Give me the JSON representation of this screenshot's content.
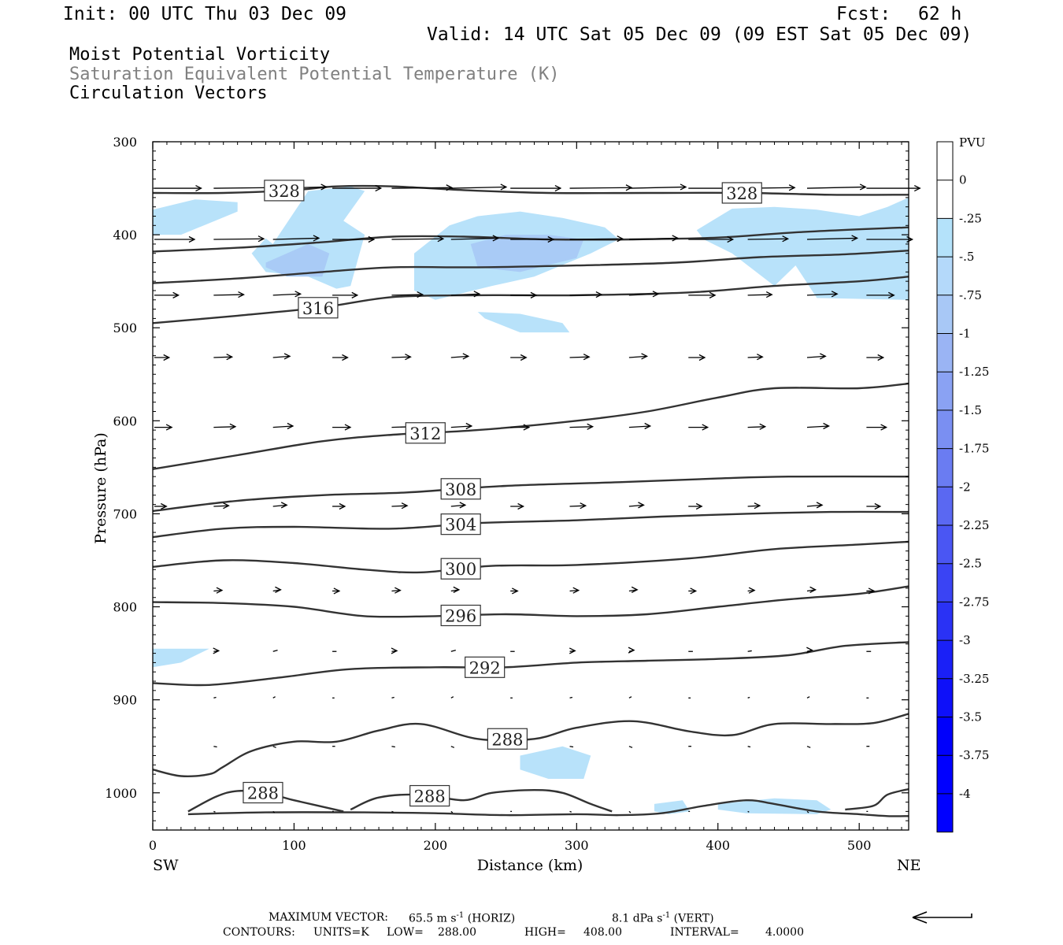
{
  "header": {
    "init": "Init: 00 UTC Thu 03 Dec 09",
    "fcst_label": "Fcst:",
    "fcst_value": "62 h",
    "valid": "Valid: 14 UTC Sat 05 Dec 09 (09 EST Sat 05 Dec 09)"
  },
  "fields": {
    "line1": "Moist Potential Vorticity",
    "line2": "Saturation Equivalent Potential Temperature (K)",
    "line3": "Circulation Vectors"
  },
  "colors": {
    "pv_fill": [
      "#ffffff",
      "#ffffff",
      "#b4e2fa",
      "#b4d9fa",
      "#a8c8f6",
      "#9ab4f4",
      "#8aa2f3",
      "#7a8ff2",
      "#6a7cf2",
      "#5a68f2",
      "#4a56f3",
      "#3a44f4",
      "#2a32f5",
      "#1a20f7",
      "#0e10f9",
      "#0000fb",
      "#0000ff"
    ],
    "contour": "#333333",
    "vector": "#000000",
    "shade": "#b8e2fa",
    "shade_dark": "#a9cbf6"
  },
  "chart_data": {
    "type": "cross-section",
    "xlabel": "Distance (km)",
    "ylabel": "Pressure (hPa)",
    "xlim": [
      0,
      535
    ],
    "ylim": [
      1040,
      300
    ],
    "x_ticks": [
      0,
      100,
      200,
      300,
      400,
      500
    ],
    "y_ticks": [
      300,
      400,
      500,
      600,
      700,
      800,
      900,
      1000
    ],
    "x_end_labels": {
      "left": "SW",
      "right": "NE"
    },
    "colorbar": {
      "title": "PVU",
      "labels": [
        "0",
        "-.25",
        "-.5",
        "-.75",
        "-1",
        "-1.25",
        "-1.5",
        "-1.75",
        "-2",
        "-2.25",
        "-2.5",
        "-2.75",
        "-3",
        "-3.25",
        "-3.5",
        "-3.75",
        "-4"
      ]
    },
    "contours": [
      {
        "label": "328",
        "x": [
          0,
          50,
          100,
          130,
          170,
          220,
          280,
          350,
          420,
          480,
          535
        ],
        "y": [
          355,
          355,
          352,
          348,
          348,
          352,
          355,
          355,
          355,
          357,
          357
        ]
      },
      {
        "x": [
          0,
          60,
          120,
          170,
          220,
          280,
          340,
          400,
          460,
          535
        ],
        "y": [
          418,
          414,
          408,
          402,
          402,
          405,
          405,
          403,
          397,
          392
        ]
      },
      {
        "x": [
          0,
          60,
          120,
          170,
          230,
          300,
          370,
          430,
          490,
          535
        ],
        "y": [
          452,
          447,
          440,
          435,
          435,
          433,
          430,
          424,
          421,
          417
        ]
      },
      {
        "label": "316",
        "x": [
          0,
          60,
          120,
          170,
          230,
          300,
          380,
          440,
          500,
          535
        ],
        "y": [
          495,
          487,
          478,
          467,
          465,
          465,
          462,
          455,
          450,
          445
        ]
      },
      {
        "label": "312",
        "x": [
          0,
          60,
          120,
          170,
          230,
          300,
          350,
          400,
          440,
          500,
          535
        ],
        "y": [
          652,
          637,
          622,
          615,
          610,
          600,
          590,
          575,
          565,
          565,
          560
        ]
      },
      {
        "label": "308",
        "x": [
          0,
          60,
          120,
          180,
          250,
          330,
          400,
          450,
          535
        ],
        "y": [
          697,
          686,
          680,
          677,
          670,
          666,
          662,
          660,
          660
        ]
      },
      {
        "label": "304",
        "x": [
          0,
          50,
          100,
          170,
          230,
          300,
          360,
          420,
          480,
          535
        ],
        "y": [
          725,
          716,
          714,
          716,
          710,
          707,
          703,
          700,
          698,
          698
        ]
      },
      {
        "label": "300",
        "x": [
          0,
          50,
          100,
          150,
          190,
          240,
          300,
          380,
          440,
          500,
          535
        ],
        "y": [
          757,
          750,
          753,
          760,
          763,
          756,
          755,
          748,
          738,
          733,
          730
        ]
      },
      {
        "label": "296",
        "x": [
          0,
          50,
          100,
          150,
          200,
          250,
          300,
          350,
          400,
          450,
          500,
          535
        ],
        "y": [
          795,
          796,
          800,
          810,
          810,
          808,
          810,
          808,
          800,
          792,
          786,
          778
        ]
      },
      {
        "label": "292",
        "x": [
          0,
          40,
          90,
          140,
          200,
          250,
          300,
          350,
          400,
          450,
          490,
          535
        ],
        "y": [
          882,
          884,
          876,
          867,
          865,
          865,
          860,
          858,
          856,
          852,
          842,
          838
        ]
      },
      {
        "label": "288",
        "x": [
          0,
          20,
          40,
          50,
          70,
          100,
          130,
          160,
          190,
          230,
          270,
          300,
          340,
          380,
          410,
          440,
          480,
          510,
          535
        ],
        "y": [
          975,
          982,
          980,
          972,
          955,
          945,
          945,
          933,
          926,
          942,
          942,
          930,
          923,
          934,
          938,
          926,
          926,
          925,
          915
        ]
      },
      {
        "label": "288",
        "x": [
          25,
          45,
          60,
          80,
          100,
          135
        ],
        "y": [
          1020,
          1004,
          998,
          1000,
          1008,
          1020
        ]
      },
      {
        "label": "288",
        "x": [
          140,
          160,
          190,
          220,
          240,
          270,
          290,
          310,
          325
        ],
        "y": [
          1018,
          1005,
          1002,
          1008,
          1000,
          997,
          1000,
          1012,
          1020
        ]
      },
      {
        "x": [
          490,
          510,
          520,
          535
        ],
        "y": [
          1018,
          1014,
          1002,
          996
        ]
      },
      {
        "x": [
          25,
          80,
          150,
          200,
          250,
          300,
          330,
          360,
          390,
          420,
          440,
          470,
          500,
          520,
          535
        ],
        "y": [
          1023,
          1021,
          1021,
          1022,
          1024,
          1023,
          1024,
          1022,
          1014,
          1008,
          1012,
          1020,
          1023,
          1025,
          1025
        ]
      }
    ],
    "pv_regions": [
      {
        "shade": "-.25",
        "x": [
          0,
          30,
          60,
          60,
          20,
          0
        ],
        "y": [
          373,
          362,
          365,
          375,
          400,
          400
        ]
      },
      {
        "shade": "-.25",
        "x": [
          85,
          110,
          140,
          150,
          135,
          150,
          140,
          130,
          110,
          80,
          70,
          80
        ],
        "y": [
          410,
          353,
          348,
          353,
          385,
          400,
          455,
          458,
          445,
          440,
          420,
          404
        ]
      },
      {
        "shade": "-.25",
        "x": [
          185,
          210,
          230,
          260,
          290,
          320,
          330,
          310,
          270,
          240,
          200,
          185
        ],
        "y": [
          420,
          390,
          380,
          375,
          382,
          392,
          405,
          420,
          445,
          455,
          470,
          460
        ]
      },
      {
        "shade": "-.25",
        "x": [
          230,
          260,
          290,
          295,
          260,
          235
        ],
        "y": [
          483,
          485,
          495,
          505,
          505,
          490
        ]
      },
      {
        "shade": "-.25",
        "x": [
          385,
          410,
          440,
          470,
          500,
          520,
          535,
          535,
          470,
          455,
          440,
          410,
          390
        ],
        "y": [
          395,
          372,
          370,
          373,
          380,
          370,
          360,
          470,
          468,
          433,
          455,
          420,
          405
        ]
      },
      {
        "shade": "-.25",
        "x": [
          0,
          40,
          20,
          0
        ],
        "y": [
          845,
          845,
          860,
          865
        ]
      },
      {
        "shade": "-.25",
        "x": [
          260,
          290,
          310,
          305,
          280,
          260
        ],
        "y": [
          960,
          950,
          960,
          985,
          985,
          975
        ]
      },
      {
        "shade": "-.25",
        "x": [
          355,
          375,
          380,
          365,
          355
        ],
        "y": [
          1012,
          1008,
          1020,
          1023,
          1020
        ]
      },
      {
        "shade": "-.25",
        "x": [
          400,
          440,
          470,
          480,
          470,
          420,
          400
        ],
        "y": [
          1012,
          1006,
          1008,
          1018,
          1023,
          1022,
          1018
        ]
      },
      {
        "shade": "-.5",
        "x": [
          80,
          110,
          125,
          120,
          95,
          80
        ],
        "y": [
          430,
          410,
          420,
          445,
          445,
          435
        ]
      },
      {
        "shade": "-.5",
        "x": [
          225,
          250,
          280,
          305,
          300,
          260,
          230
        ],
        "y": [
          410,
          400,
          400,
          405,
          425,
          440,
          435
        ]
      }
    ],
    "vector_levels": [
      350,
      405,
      465,
      532,
      607,
      692,
      783,
      848,
      898,
      950,
      1020
    ],
    "max_vector": {
      "label": "MAXIMUM VECTOR:",
      "horiz": "65.5 m s",
      "horiz_unit": "(HORIZ)",
      "vert": "8.1 dPa s",
      "vert_unit": "(VERT)",
      "exponent": "-1"
    },
    "contours_info": {
      "label": "CONTOURS:",
      "units": "UNITS=K",
      "low": "LOW=",
      "low_value": "288.00",
      "high": "HIGH=",
      "high_value": "408.00",
      "interval": "INTERVAL=",
      "interval_value": "4.0000"
    }
  }
}
